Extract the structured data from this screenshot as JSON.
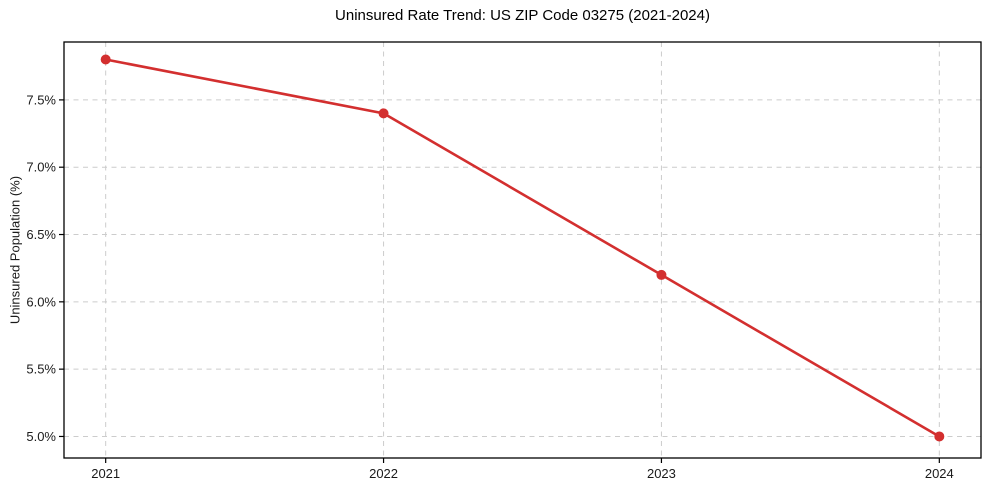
{
  "chart_data": {
    "type": "line",
    "title": "Uninsured Rate Trend: US ZIP Code 03275 (2021-2024)",
    "xlabel": "",
    "ylabel": "Uninsured Population (%)",
    "categories": [
      "2021",
      "2022",
      "2023",
      "2024"
    ],
    "x": [
      2021,
      2022,
      2023,
      2024
    ],
    "values": [
      7.8,
      7.4,
      6.2,
      5.0
    ],
    "xlim": [
      2020.85,
      2024.15
    ],
    "ylim": [
      4.84,
      7.93
    ],
    "xticks": [
      {
        "value": 2021,
        "label": "2021"
      },
      {
        "value": 2022,
        "label": "2022"
      },
      {
        "value": 2023,
        "label": "2023"
      },
      {
        "value": 2024,
        "label": "2024"
      }
    ],
    "yticks": [
      {
        "value": 5.0,
        "label": "5.0%"
      },
      {
        "value": 5.5,
        "label": "5.5%"
      },
      {
        "value": 6.0,
        "label": "6.0%"
      },
      {
        "value": 6.5,
        "label": "6.5%"
      },
      {
        "value": 7.0,
        "label": "7.0%"
      },
      {
        "value": 7.5,
        "label": "7.5%"
      }
    ],
    "grid": true,
    "grid_style": "dashed",
    "grid_color": "#cccccc",
    "legend_position": "none",
    "line_color": "#d32f2f",
    "marker": "circle",
    "marker_radius": 5,
    "frame_color": "#000000",
    "text_color": "#1a1a1a"
  }
}
